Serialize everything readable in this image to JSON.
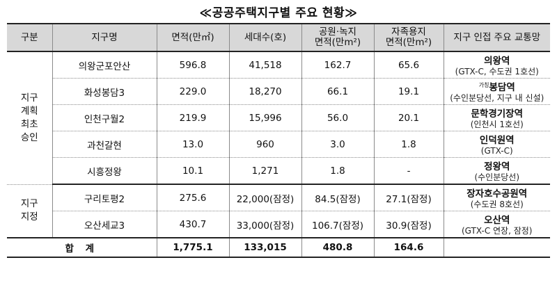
{
  "title": "≪공공주택지구별 주요 현황≫",
  "headers": {
    "category": "구분",
    "district": "지구명",
    "area": "면적(만㎡)",
    "households": "세대수(호)",
    "green_line1": "공원·녹지",
    "green_line2": "면적(만m²)",
    "self_line1": "자족용지",
    "self_line2": "면적(만m²)",
    "transit": "지구 인접 주요 교통망"
  },
  "groups": [
    {
      "label_lines": [
        "지구",
        "계획",
        "최초",
        "승인"
      ]
    },
    {
      "label_lines": [
        "지구",
        "지정"
      ]
    }
  ],
  "rows": [
    {
      "district": "의왕군포안산",
      "area": "596.8",
      "households": "41,518",
      "green": "162.7",
      "self_sufficient": "65.6",
      "transit_prefix": "",
      "transit_main": "의왕역",
      "transit_sub": "(GTX-C, 수도권 1호선)"
    },
    {
      "district": "화성봉담3",
      "area": "229.0",
      "households": "18,270",
      "green": "66.1",
      "self_sufficient": "19.1",
      "transit_prefix": "가칭",
      "transit_main": "봉담역",
      "transit_sub": "(수인분당선, 지구 내 신설)"
    },
    {
      "district": "인천구월2",
      "area": "219.9",
      "households": "15,996",
      "green": "56.0",
      "self_sufficient": "20.1",
      "transit_prefix": "",
      "transit_main": "문학경기장역",
      "transit_sub": "(인천시 1호선)"
    },
    {
      "district": "과천갈현",
      "area": "13.0",
      "households": "960",
      "green": "3.0",
      "self_sufficient": "1.8",
      "transit_prefix": "",
      "transit_main": "인덕원역",
      "transit_sub": "(GTX-C)"
    },
    {
      "district": "시흥정왕",
      "area": "10.1",
      "households": "1,271",
      "green": "1.8",
      "self_sufficient": "-",
      "transit_prefix": "",
      "transit_main": "정왕역",
      "transit_sub": "(수인분당선)"
    },
    {
      "district": "구리토평2",
      "area": "275.6",
      "households": "22,000(잠정)",
      "green": "84.5(잠정)",
      "self_sufficient": "27.1(잠정)",
      "transit_prefix": "",
      "transit_main": "장자호수공원역",
      "transit_sub": "(수도권 8호선)"
    },
    {
      "district": "오산세교3",
      "area": "430.7",
      "households": "33,000(잠정)",
      "green": "106.7(잠정)",
      "self_sufficient": "30.9(잠정)",
      "transit_prefix": "",
      "transit_main": "오산역",
      "transit_sub": "(GTX-C 연장, 잠정)"
    }
  ],
  "total": {
    "label": "합 계",
    "area": "1,775.1",
    "households": "133,015",
    "green": "480.8",
    "self_sufficient": "164.6"
  }
}
